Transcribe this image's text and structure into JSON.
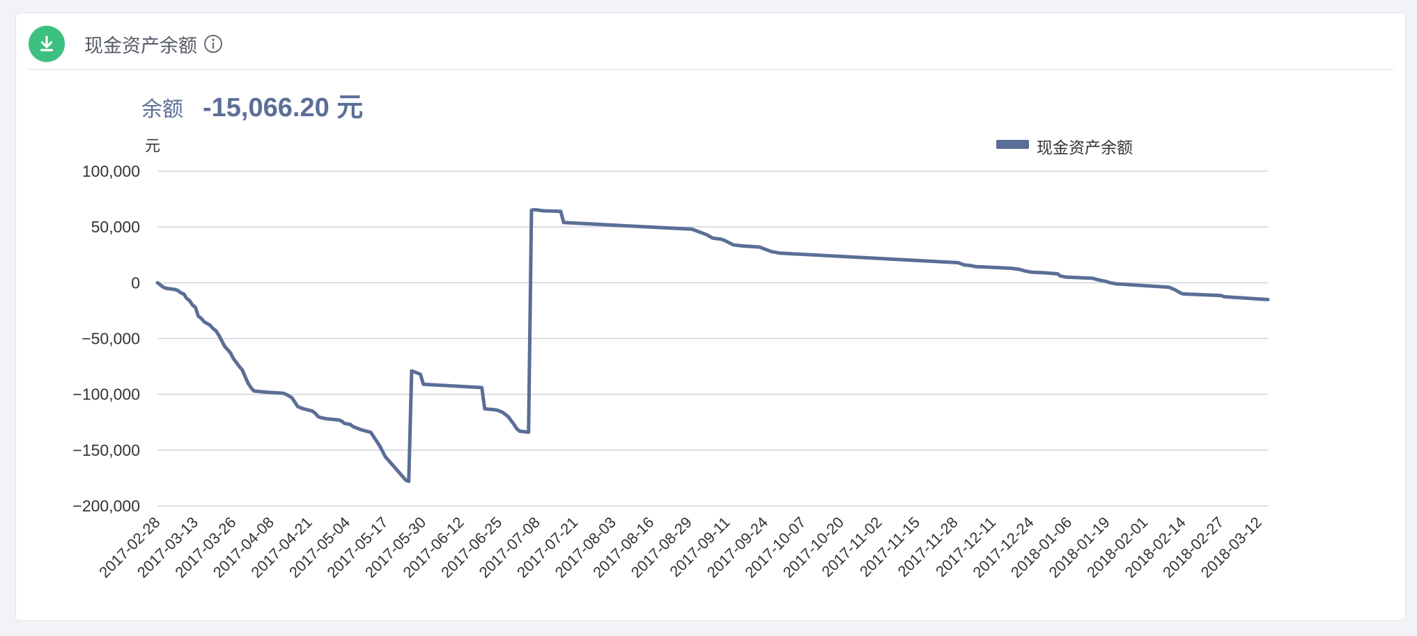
{
  "header": {
    "title": "现金资产余额",
    "download_icon": "download-icon",
    "info_icon": "info-icon",
    "accent_color": "#3cbf7f"
  },
  "summary": {
    "label": "余额",
    "value": "-15,066.20 元"
  },
  "colors": {
    "series": "#5a6e96",
    "grid": "#cfd3da",
    "text": "#333333"
  },
  "chart_data": {
    "type": "line",
    "ylabel": "元",
    "ylim": [
      -200000,
      100000
    ],
    "y_ticks": [
      100000,
      50000,
      0,
      -50000,
      -100000,
      -150000,
      -200000
    ],
    "y_tick_labels": [
      "100,000",
      "50,000",
      "0",
      "−50,000",
      "−100,000",
      "−150,000",
      "−200,000"
    ],
    "x_range": [
      "2017-02-28",
      "2018-03-15"
    ],
    "x_tick_labels": [
      "2017-02-28",
      "2017-03-13",
      "2017-03-26",
      "2017-04-08",
      "2017-04-21",
      "2017-05-04",
      "2017-05-17",
      "2017-05-30",
      "2017-06-12",
      "2017-06-25",
      "2017-07-08",
      "2017-07-21",
      "2017-08-03",
      "2017-08-16",
      "2017-08-29",
      "2017-09-11",
      "2017-09-24",
      "2017-10-07",
      "2017-10-20",
      "2017-11-02",
      "2017-11-15",
      "2017-11-28",
      "2017-12-11",
      "2017-12-24",
      "2018-01-06",
      "2018-01-19",
      "2018-02-01",
      "2018-02-14",
      "2018-02-27",
      "2018-03-12"
    ],
    "legend_position": "top-right",
    "grid": true,
    "series": [
      {
        "name": "现金资产余额",
        "points": [
          [
            "2017-02-28",
            0
          ],
          [
            "2017-03-01",
            -2000
          ],
          [
            "2017-03-02",
            -4000
          ],
          [
            "2017-03-03",
            -5000
          ],
          [
            "2017-03-06",
            -6000
          ],
          [
            "2017-03-07",
            -7000
          ],
          [
            "2017-03-08",
            -9000
          ],
          [
            "2017-03-09",
            -10000
          ],
          [
            "2017-03-10",
            -14000
          ],
          [
            "2017-03-11",
            -16000
          ],
          [
            "2017-03-12",
            -20000
          ],
          [
            "2017-03-13",
            -22000
          ],
          [
            "2017-03-14",
            -30000
          ],
          [
            "2017-03-15",
            -32000
          ],
          [
            "2017-03-16",
            -35000
          ],
          [
            "2017-03-18",
            -38000
          ],
          [
            "2017-03-19",
            -41000
          ],
          [
            "2017-03-20",
            -43000
          ],
          [
            "2017-03-21",
            -47000
          ],
          [
            "2017-03-22",
            -52000
          ],
          [
            "2017-03-23",
            -57000
          ],
          [
            "2017-03-25",
            -63000
          ],
          [
            "2017-03-26",
            -68000
          ],
          [
            "2017-03-28",
            -75000
          ],
          [
            "2017-03-29",
            -78000
          ],
          [
            "2017-03-30",
            -84000
          ],
          [
            "2017-03-31",
            -90000
          ],
          [
            "2017-04-01",
            -94000
          ],
          [
            "2017-04-02",
            -97000
          ],
          [
            "2017-04-06",
            -98000
          ],
          [
            "2017-04-12",
            -99000
          ],
          [
            "2017-04-13",
            -100000
          ],
          [
            "2017-04-15",
            -103000
          ],
          [
            "2017-04-16",
            -107000
          ],
          [
            "2017-04-17",
            -111000
          ],
          [
            "2017-04-19",
            -113000
          ],
          [
            "2017-04-22",
            -115000
          ],
          [
            "2017-04-23",
            -117000
          ],
          [
            "2017-04-24",
            -120000
          ],
          [
            "2017-04-25",
            -121000
          ],
          [
            "2017-04-27",
            -122000
          ],
          [
            "2017-05-01",
            -123000
          ],
          [
            "2017-05-02",
            -124000
          ],
          [
            "2017-05-03",
            -126000
          ],
          [
            "2017-05-05",
            -127000
          ],
          [
            "2017-05-06",
            -129000
          ],
          [
            "2017-05-09",
            -132000
          ],
          [
            "2017-05-12",
            -134000
          ],
          [
            "2017-05-13",
            -138000
          ],
          [
            "2017-05-15",
            -146000
          ],
          [
            "2017-05-17",
            -156000
          ],
          [
            "2017-05-19",
            -162000
          ],
          [
            "2017-05-21",
            -168000
          ],
          [
            "2017-05-23",
            -174000
          ],
          [
            "2017-05-24",
            -177000
          ],
          [
            "2017-05-25",
            -178000
          ],
          [
            "2017-05-26",
            -79000
          ],
          [
            "2017-05-27",
            -80000
          ],
          [
            "2017-05-29",
            -82000
          ],
          [
            "2017-05-30",
            -91000
          ],
          [
            "2017-06-19",
            -94000
          ],
          [
            "2017-06-20",
            -113000
          ],
          [
            "2017-06-24",
            -114000
          ],
          [
            "2017-06-26",
            -116000
          ],
          [
            "2017-06-28",
            -120000
          ],
          [
            "2017-06-30",
            -127000
          ],
          [
            "2017-07-01",
            -131000
          ],
          [
            "2017-07-02",
            -133000
          ],
          [
            "2017-07-05",
            -134000
          ],
          [
            "2017-07-06",
            65000
          ],
          [
            "2017-07-07",
            65500
          ],
          [
            "2017-07-10",
            64500
          ],
          [
            "2017-07-16",
            64000
          ],
          [
            "2017-07-17",
            54000
          ],
          [
            "2017-08-30",
            48000
          ],
          [
            "2017-08-31",
            47000
          ],
          [
            "2017-09-02",
            45000
          ],
          [
            "2017-09-04",
            43000
          ],
          [
            "2017-09-06",
            40000
          ],
          [
            "2017-09-09",
            39000
          ],
          [
            "2017-09-10",
            38000
          ],
          [
            "2017-09-13",
            34000
          ],
          [
            "2017-09-16",
            33000
          ],
          [
            "2017-09-22",
            32000
          ],
          [
            "2017-09-24",
            30000
          ],
          [
            "2017-09-26",
            28000
          ],
          [
            "2017-09-29",
            26500
          ],
          [
            "2017-11-29",
            18000
          ],
          [
            "2017-11-30",
            17000
          ],
          [
            "2017-12-01",
            16000
          ],
          [
            "2017-12-03",
            15500
          ],
          [
            "2017-12-05",
            14500
          ],
          [
            "2017-12-17",
            13000
          ],
          [
            "2017-12-20",
            12000
          ],
          [
            "2017-12-22",
            10500
          ],
          [
            "2017-12-24",
            9500
          ],
          [
            "2017-12-28",
            9000
          ],
          [
            "2018-01-02",
            8000
          ],
          [
            "2018-01-03",
            6000
          ],
          [
            "2018-01-05",
            5000
          ],
          [
            "2018-01-14",
            4000
          ],
          [
            "2018-01-16",
            2500
          ],
          [
            "2018-01-18",
            1500
          ],
          [
            "2018-01-20",
            0
          ],
          [
            "2018-01-22",
            -1000
          ],
          [
            "2018-02-09",
            -4000
          ],
          [
            "2018-02-11",
            -6000
          ],
          [
            "2018-02-13",
            -9000
          ],
          [
            "2018-02-14",
            -10000
          ],
          [
            "2018-02-27",
            -11500
          ],
          [
            "2018-02-28",
            -12500
          ],
          [
            "2018-03-15",
            -15066.2
          ]
        ]
      }
    ]
  }
}
